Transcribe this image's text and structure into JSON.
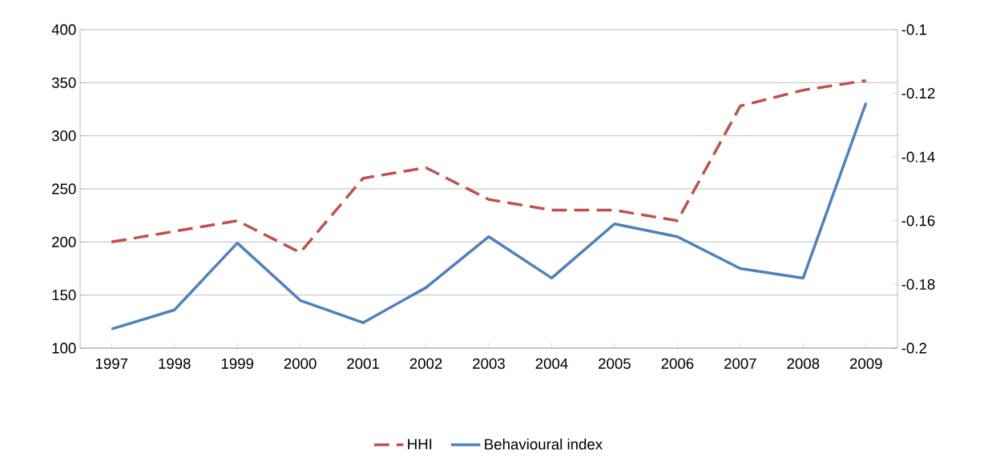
{
  "chart_data": {
    "type": "line",
    "categories": [
      "1997",
      "1998",
      "1999",
      "2000",
      "2001",
      "2002",
      "2003",
      "2004",
      "2005",
      "2006",
      "2007",
      "2008",
      "2009"
    ],
    "series": [
      {
        "name": "HHI",
        "color": "#c0504d",
        "line_style": "dashed",
        "values": [
          200,
          210,
          220,
          190,
          260,
          270,
          240,
          230,
          230,
          220,
          328,
          343,
          352
        ]
      },
      {
        "name": "Behavioural index",
        "color": "#4f81bd",
        "line_style": "solid",
        "axis": "y2",
        "values": [
          -0.194,
          -0.188,
          -0.167,
          -0.185,
          -0.192,
          -0.181,
          -0.165,
          -0.178,
          -0.161,
          -0.165,
          -0.175,
          -0.178,
          -0.123
        ]
      }
    ],
    "ylim": [
      100,
      400
    ],
    "yticks": [
      100,
      150,
      200,
      250,
      300,
      350,
      400
    ],
    "y2lim": [
      -0.2,
      -0.1
    ],
    "y2ticks": [
      -0.2,
      -0.18,
      -0.16,
      -0.14,
      -0.12,
      -0.1
    ],
    "grid": "y",
    "legend": "bottom",
    "marker": "none"
  }
}
